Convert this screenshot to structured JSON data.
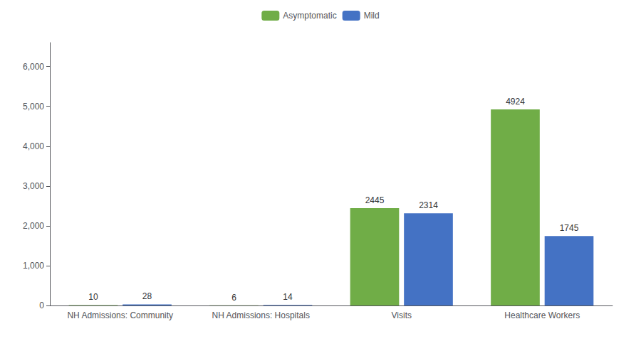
{
  "chart_data": {
    "type": "bar",
    "categories": [
      "NH Admissions: Community",
      "NH Admissions: Hospitals",
      "Visits",
      "Healthcare Workers"
    ],
    "series": [
      {
        "name": "Asymptomatic",
        "color": "#70ad47",
        "values": [
          10,
          6,
          2445,
          4924
        ]
      },
      {
        "name": "Mild",
        "color": "#4472c4",
        "values": [
          28,
          14,
          2314,
          1745
        ]
      }
    ],
    "ylim": [
      0,
      6600
    ],
    "yticks": [
      0,
      {
        "value": 1000,
        "label": "1,000"
      },
      {
        "value": 2000,
        "label": "2,000"
      },
      {
        "value": 3000,
        "label": "3,000"
      },
      {
        "value": 4000,
        "label": "4,000"
      },
      {
        "value": 5000,
        "label": "5,000"
      },
      {
        "value": 6000,
        "label": "6,000"
      }
    ],
    "grid": false,
    "legend": "top",
    "data_labels": true
  }
}
